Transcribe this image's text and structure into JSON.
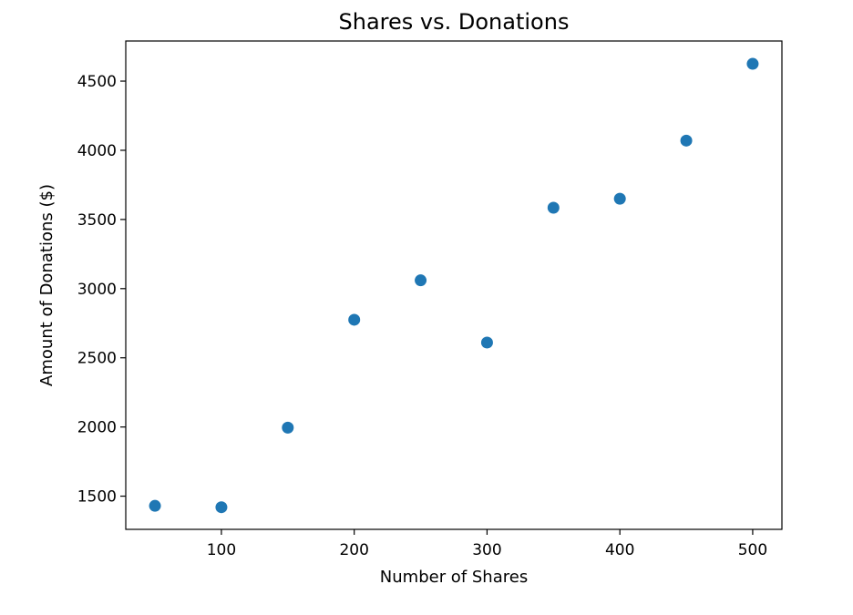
{
  "chart_data": {
    "type": "scatter",
    "title": "Shares vs. Donations",
    "xlabel": "Number of Shares",
    "ylabel": "Amount of Donations ($)",
    "x": [
      50,
      100,
      150,
      200,
      250,
      300,
      350,
      400,
      450,
      500
    ],
    "y": [
      1430,
      1420,
      1995,
      2775,
      3060,
      2610,
      3585,
      3650,
      4070,
      4625
    ],
    "xlim": [
      28,
      522
    ],
    "ylim": [
      1260,
      4790
    ],
    "xticks": [
      100,
      200,
      300,
      400,
      500
    ],
    "yticks": [
      1500,
      2000,
      2500,
      3000,
      3500,
      4000,
      4500
    ],
    "marker_color": "#1f77b4",
    "grid": false,
    "legend": false
  }
}
